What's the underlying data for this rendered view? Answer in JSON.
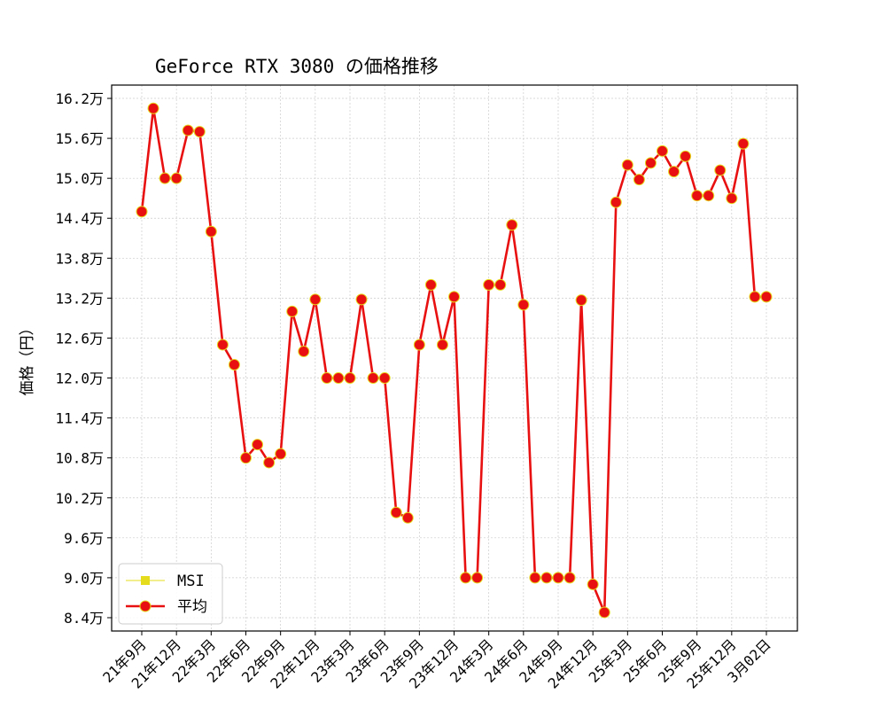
{
  "chart_data": {
    "type": "line",
    "title": "GeForce RTX 3080 の価格推移",
    "xlabel": "",
    "ylabel": "価格（円）",
    "x_tick_labels": [
      "21年9月",
      "21年12月",
      "22年3月",
      "22年6月",
      "22年9月",
      "22年12月",
      "23年3月",
      "23年6月",
      "23年9月",
      "23年12月",
      "24年3月",
      "24年6月",
      "24年9月",
      "24年12月",
      "25年3月",
      "25年6月",
      "25年9月",
      "25年12月",
      "3月02日"
    ],
    "y_ticks": [
      84000,
      90000,
      96000,
      102000,
      108000,
      114000,
      120000,
      126000,
      132000,
      138000,
      144000,
      150000,
      156000,
      162000
    ],
    "y_tick_labels": [
      "8.4万",
      "9.0万",
      "9.6万",
      "10.2万",
      "10.8万",
      "11.4万",
      "12.0万",
      "12.6万",
      "13.2万",
      "13.8万",
      "14.4万",
      "15.0万",
      "15.6万",
      "16.2万"
    ],
    "ylim": [
      82000,
      164000
    ],
    "grid": true,
    "legend_position": "lower-left",
    "colors": {
      "msi": "#e6dc1e",
      "average": "#e81010",
      "marker_edge": "#e6dc1e",
      "grid": "#cccccc"
    },
    "series": [
      {
        "name": "MSI",
        "style": "square-marker-line",
        "values": [
          145000,
          160500,
          150000,
          150000,
          157200,
          157000,
          142000,
          125000,
          122000,
          108000,
          110000,
          107300,
          108600,
          130000,
          124000,
          131800,
          120000,
          120000,
          120000,
          131800,
          120000,
          120000,
          99800,
          99000,
          125000,
          134000,
          125000,
          132200,
          90000,
          90000,
          134000,
          134000,
          143000,
          131000,
          90000,
          90000,
          90000,
          90000,
          131700,
          89000,
          84800,
          146400,
          152000,
          149800,
          152300,
          154100,
          151000,
          153300,
          147400,
          147400,
          151200,
          147000,
          155200,
          132200,
          132200
        ]
      },
      {
        "name": "平均",
        "style": "circle-marker-line",
        "values": [
          145000,
          160500,
          150000,
          150000,
          157200,
          157000,
          142000,
          125000,
          122000,
          108000,
          110000,
          107300,
          108600,
          130000,
          124000,
          131800,
          120000,
          120000,
          120000,
          131800,
          120000,
          120000,
          99800,
          99000,
          125000,
          134000,
          125000,
          132200,
          90000,
          90000,
          134000,
          134000,
          143000,
          131000,
          90000,
          90000,
          90000,
          90000,
          131700,
          89000,
          84800,
          146400,
          152000,
          149800,
          152300,
          154100,
          151000,
          153300,
          147400,
          147400,
          151200,
          147000,
          155200,
          132200,
          132200
        ]
      }
    ]
  }
}
